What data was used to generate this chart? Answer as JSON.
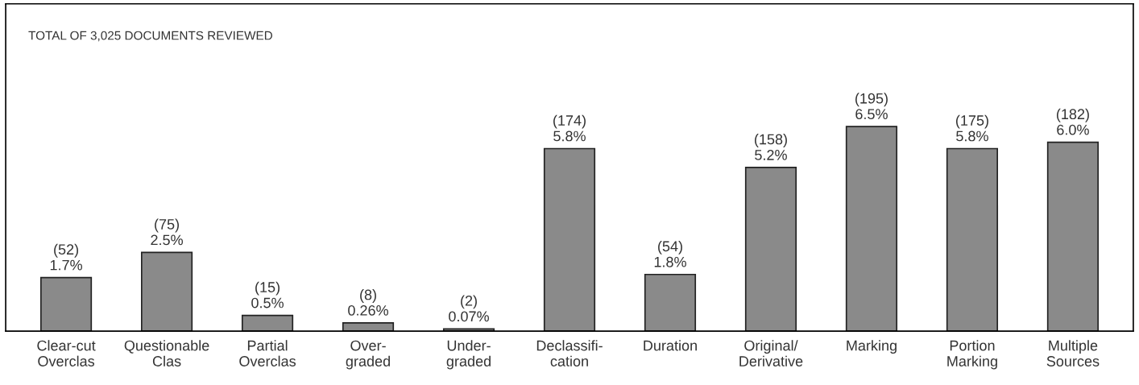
{
  "chart_data": {
    "type": "bar",
    "title": "TOTAL OF 3,025 DOCUMENTS REVIEWED",
    "categories": [
      "Clear-cut\nOverclas",
      "Questionable\nClas",
      "Partial\nOverclas",
      "Over-\ngraded",
      "Under-\ngraded",
      "Declassifi-\ncation",
      "Duration",
      "Original/\nDerivative",
      "Marking",
      "Portion\nMarking",
      "Multiple\nSources"
    ],
    "values": [
      1.7,
      2.5,
      0.5,
      0.26,
      0.07,
      5.8,
      1.8,
      5.2,
      6.5,
      5.8,
      6.0
    ],
    "value_labels": [
      "(52)\n1.7%",
      "(75)\n2.5%",
      "(15)\n0.5%",
      "(8)\n0.26%",
      "(2)\n0.07%",
      "(174)\n5.8%",
      "(54)\n1.8%",
      "(158)\n5.2%",
      "(195)\n6.5%",
      "(175)\n5.8%",
      "(182)\n6.0%"
    ],
    "color": "#8a8a8a",
    "grid": false,
    "legend": false
  }
}
